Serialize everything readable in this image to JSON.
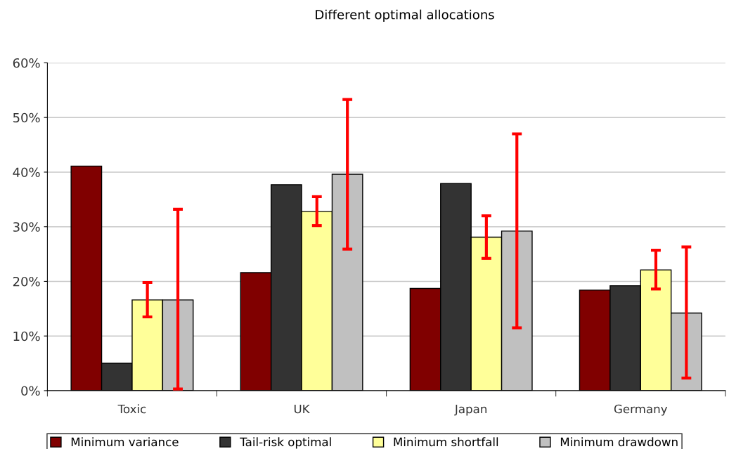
{
  "chart_data": {
    "type": "bar",
    "title": "Different optimal allocations",
    "categories": [
      "Toxic",
      "UK",
      "Japan",
      "Germany"
    ],
    "series": [
      {
        "name": "Minimum variance",
        "color": "#800000",
        "values": [
          41.1,
          21.6,
          18.7,
          18.4
        ]
      },
      {
        "name": "Tail-risk optimal",
        "color": "#333333",
        "values": [
          5.0,
          37.7,
          37.9,
          19.2
        ]
      },
      {
        "name": "Minimum shortfall",
        "color": "#ffff99",
        "values": [
          16.6,
          32.8,
          28.1,
          22.1
        ],
        "errors": [
          [
            13.5,
            19.8
          ],
          [
            30.2,
            35.5
          ],
          [
            24.2,
            32.0
          ],
          [
            18.6,
            25.7
          ]
        ]
      },
      {
        "name": "Minimum drawdown",
        "color": "#c0c0c0",
        "values": [
          16.6,
          39.6,
          29.2,
          14.2
        ],
        "errors": [
          [
            0.3,
            33.2
          ],
          [
            25.9,
            53.3
          ],
          [
            11.5,
            47.0
          ],
          [
            2.3,
            26.3
          ]
        ]
      }
    ],
    "ylim": [
      0,
      60
    ],
    "yticks": [
      {
        "value": 0,
        "label": "0%"
      },
      {
        "value": 10,
        "label": "10%"
      },
      {
        "value": 20,
        "label": "20%"
      },
      {
        "value": 30,
        "label": "30%"
      },
      {
        "value": 40,
        "label": "40%"
      },
      {
        "value": 50,
        "label": "50%"
      },
      {
        "value": 60,
        "label": "60%"
      }
    ],
    "grid": "y",
    "legend": "bottom"
  }
}
